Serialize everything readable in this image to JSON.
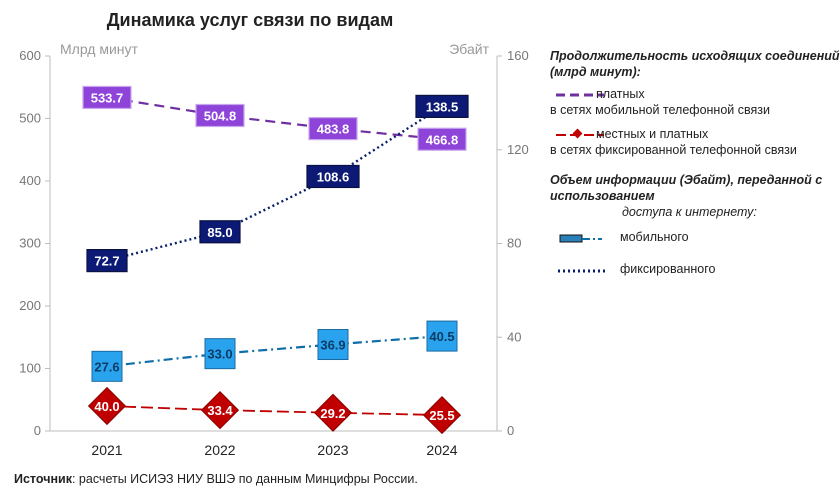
{
  "chart_data": {
    "type": "line",
    "title": "Динамика услуг связи по видам",
    "categories": [
      "2021",
      "2022",
      "2023",
      "2024"
    ],
    "left_axis": {
      "unit": "Млрд минут",
      "ylim": [
        0,
        600
      ],
      "ticks": [
        "0",
        "100",
        "200",
        "300",
        "400",
        "500",
        "600"
      ]
    },
    "right_axis": {
      "unit": "Эбайт",
      "ylim": [
        0,
        160
      ],
      "ticks": [
        "0",
        "40",
        "80",
        "120",
        "160"
      ]
    },
    "grid": false,
    "series": [
      {
        "name": "в сетях мобильной телефонной связи",
        "axis": "left",
        "values": [
          533.7,
          504.8,
          483.8,
          466.8
        ],
        "labels": [
          "533.7",
          "504.8",
          "483.8",
          "466.8"
        ],
        "color": "#7030a0",
        "label_fill": "#8e44d9"
      },
      {
        "name": "в сетях фиксированной телефонной связи",
        "axis": "left",
        "values": [
          40.0,
          33.4,
          29.2,
          25.5
        ],
        "labels": [
          "40.0",
          "33.4",
          "29.2",
          "25.5"
        ],
        "color": "#c00000",
        "label_fill": "#c00000"
      },
      {
        "name": "мобильного",
        "axis": "right",
        "values": [
          27.6,
          33.0,
          36.9,
          40.5
        ],
        "labels": [
          "27.6",
          "33.0",
          "36.9",
          "40.5"
        ],
        "color": "#0e6fa8",
        "label_fill": "#2aa3ee"
      },
      {
        "name": "фиксированного",
        "axis": "right",
        "values": [
          72.7,
          85.0,
          108.6,
          138.5
        ],
        "labels": [
          "72.7",
          "85.0",
          "108.6",
          "138.5"
        ],
        "color": "#0a1f6b",
        "label_fill": "#0c1a75"
      }
    ]
  },
  "legend": {
    "group1_title": "Продолжительность исходящих соединений (млрд минут):",
    "item1_line1": "платных",
    "item1_line2": "в сетях мобильной телефонной связи",
    "item2_line1": "местных и платных",
    "item2_line2": "в сетях фиксированной телефонной связи",
    "group2_title": "Объем информации (Эбайт), переданной с использованием",
    "group2_subtitle": "доступа к интернету:",
    "item3": "мобильного",
    "item4": "фиксированного"
  },
  "source": {
    "label": "Источник",
    "text": ": расчеты ИСИЭЗ НИУ ВШЭ по данным Минцифры России."
  }
}
